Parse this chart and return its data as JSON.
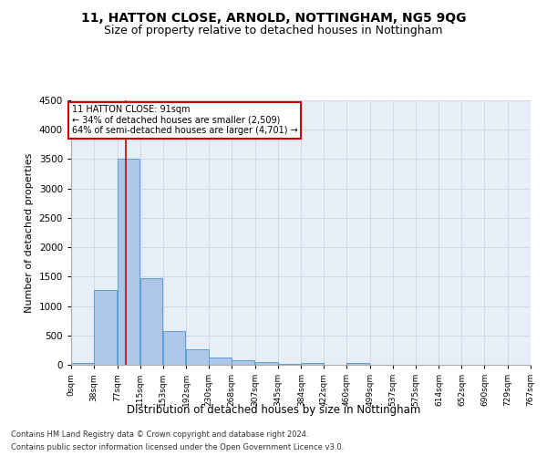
{
  "title": "11, HATTON CLOSE, ARNOLD, NOTTINGHAM, NG5 9QG",
  "subtitle": "Size of property relative to detached houses in Nottingham",
  "xlabel": "Distribution of detached houses by size in Nottingham",
  "ylabel": "Number of detached properties",
  "bar_values": [
    30,
    1280,
    3500,
    1470,
    580,
    270,
    130,
    80,
    40,
    20,
    30,
    0,
    30,
    0,
    0,
    0,
    0,
    0,
    0,
    0
  ],
  "bin_edges": [
    0,
    38,
    77,
    115,
    153,
    192,
    230,
    268,
    307,
    345,
    384,
    422,
    460,
    499,
    537,
    575,
    614,
    652,
    690,
    729,
    767
  ],
  "tick_labels": [
    "0sqm",
    "38sqm",
    "77sqm",
    "115sqm",
    "153sqm",
    "192sqm",
    "230sqm",
    "268sqm",
    "307sqm",
    "345sqm",
    "384sqm",
    "422sqm",
    "460sqm",
    "499sqm",
    "537sqm",
    "575sqm",
    "614sqm",
    "652sqm",
    "690sqm",
    "729sqm",
    "767sqm"
  ],
  "bar_color": "#aec6e8",
  "bar_edge_color": "#5a9fd4",
  "grid_color": "#d0d8e8",
  "vline_x": 91,
  "vline_color": "#cc0000",
  "annotation_text": "11 HATTON CLOSE: 91sqm\n← 34% of detached houses are smaller (2,509)\n64% of semi-detached houses are larger (4,701) →",
  "annotation_box_color": "#ffffff",
  "annotation_box_edge": "#cc0000",
  "ylim": [
    0,
    4500
  ],
  "yticks": [
    0,
    500,
    1000,
    1500,
    2000,
    2500,
    3000,
    3500,
    4000,
    4500
  ],
  "footnote1": "Contains HM Land Registry data © Crown copyright and database right 2024.",
  "footnote2": "Contains public sector information licensed under the Open Government Licence v3.0.",
  "background_color": "#e8eef8",
  "title_fontsize": 10,
  "subtitle_fontsize": 9
}
